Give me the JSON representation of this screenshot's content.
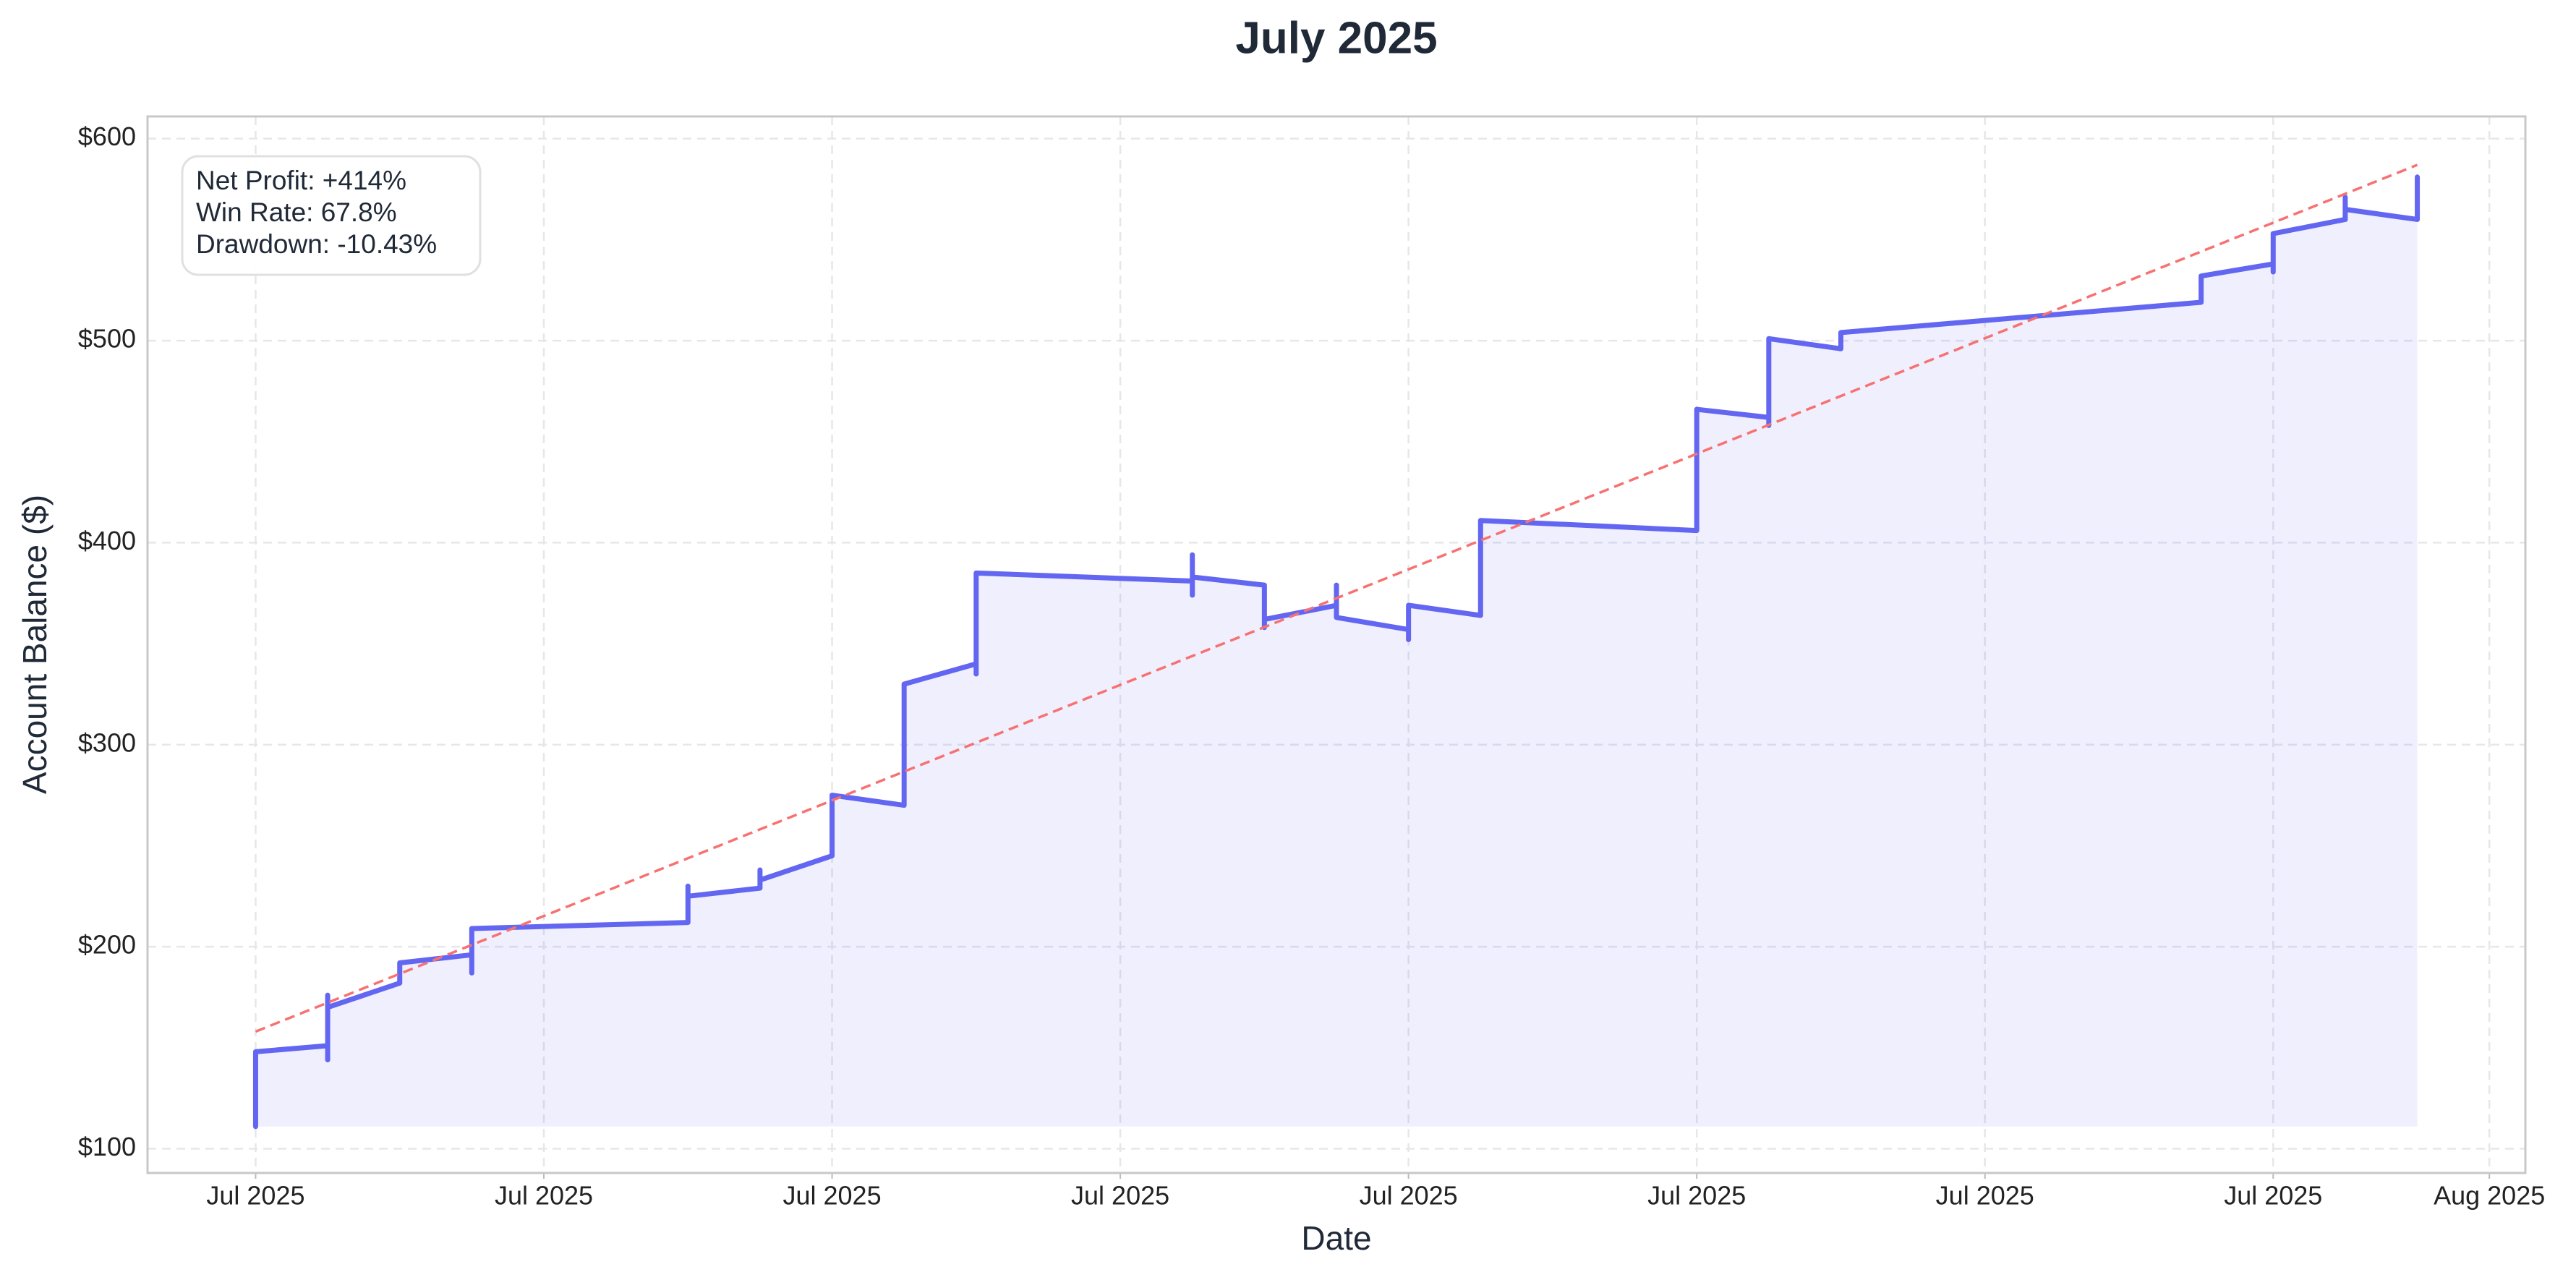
{
  "chart_data": {
    "type": "line",
    "title": "July 2025",
    "xlabel": "Date",
    "ylabel": "Account Balance ($)",
    "annotations": [
      "Net Profit: +414%",
      "Win Rate: 67.8%",
      "Drawdown: -10.43%"
    ],
    "grid": true,
    "xlim": [
      -0.5,
      32.5
    ],
    "ylim": [
      88,
      611
    ],
    "xticks": [
      {
        "value": 1,
        "label": "Jul 2025"
      },
      {
        "value": 5,
        "label": "Jul 2025"
      },
      {
        "value": 9,
        "label": "Jul 2025"
      },
      {
        "value": 13,
        "label": "Jul 2025"
      },
      {
        "value": 17,
        "label": "Jul 2025"
      },
      {
        "value": 21,
        "label": "Jul 2025"
      },
      {
        "value": 25,
        "label": "Jul 2025"
      },
      {
        "value": 29,
        "label": "Jul 2025"
      },
      {
        "value": 32,
        "label": "Aug 2025"
      }
    ],
    "yticks": [
      {
        "value": 100,
        "label": "$100"
      },
      {
        "value": 200,
        "label": "$200"
      },
      {
        "value": 300,
        "label": "$300"
      },
      {
        "value": 400,
        "label": "$400"
      },
      {
        "value": 500,
        "label": "$500"
      },
      {
        "value": 600,
        "label": "$600"
      }
    ],
    "series": [
      {
        "color": "#6366f1",
        "x": [
          1,
          1,
          2,
          2,
          2,
          2,
          3,
          3,
          4,
          4,
          4,
          7,
          7,
          7,
          8,
          8,
          8,
          9,
          9,
          10,
          10,
          11,
          11,
          11,
          14,
          14,
          14,
          14,
          15,
          15,
          15,
          16,
          16,
          16,
          17,
          17,
          17,
          18,
          18,
          21,
          21,
          22,
          22,
          22,
          23,
          23,
          24,
          28,
          28,
          29,
          29,
          29,
          30,
          30,
          30,
          31,
          31
        ],
        "values": [
          111,
          148,
          151,
          144,
          176,
          170,
          182,
          192,
          196,
          187,
          209,
          212,
          230,
          225,
          229,
          238,
          233,
          245,
          275,
          270,
          330,
          340,
          335,
          385,
          381,
          394,
          374,
          383,
          379,
          358,
          362,
          369,
          379,
          363,
          357,
          352,
          369,
          364,
          411,
          406,
          466,
          462,
          458,
          501,
          496,
          504,
          507,
          519,
          532,
          538,
          534,
          553,
          560,
          571,
          565,
          560,
          581
        ]
      }
    ],
    "trend": {
      "color": "#f87171",
      "x": [
        1,
        31
      ],
      "values": [
        158,
        587
      ]
    }
  }
}
